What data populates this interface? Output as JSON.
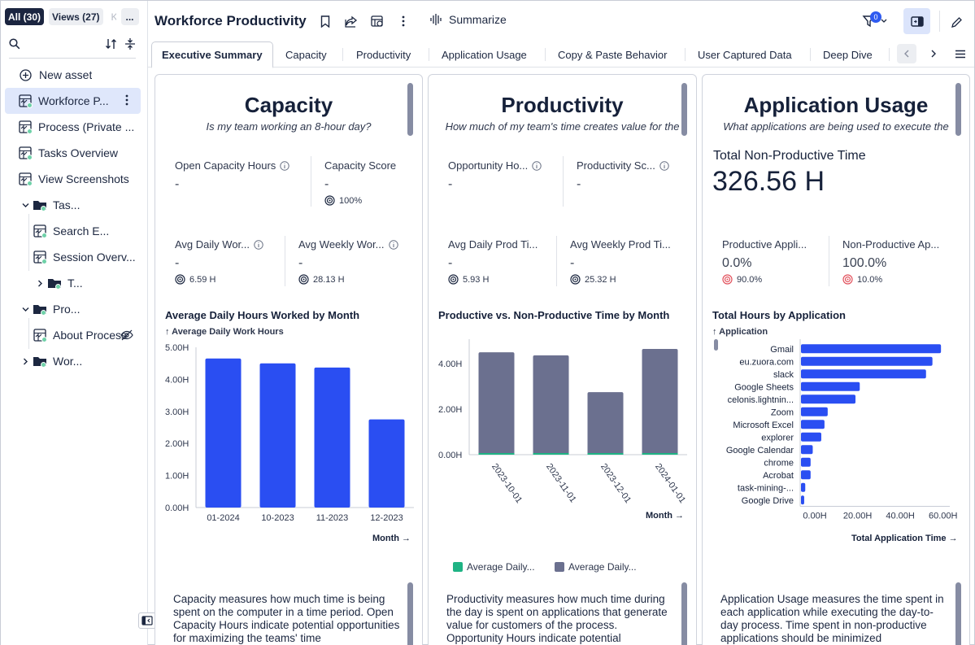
{
  "sidebar": {
    "tabs": [
      "All (30)",
      "Views (27)",
      "K",
      "..."
    ],
    "new_asset": "New asset",
    "items": [
      {
        "label": "Workforce P...",
        "icon": "view-icon"
      },
      {
        "label": "Process (Private ...",
        "icon": "view-icon"
      },
      {
        "label": "Tasks Overview",
        "icon": "view-icon"
      },
      {
        "label": "View Screenshots",
        "icon": "view-icon"
      },
      {
        "label": "Tas...",
        "icon": "folder-icon"
      },
      {
        "label": "Search E...",
        "icon": "view-icon"
      },
      {
        "label": "Session Overv...",
        "icon": "view-icon"
      },
      {
        "label": "T...",
        "icon": "folder-icon"
      },
      {
        "label": "Pro...",
        "icon": "folder-icon"
      },
      {
        "label": "About Process",
        "icon": "view-icon"
      },
      {
        "label": "Wor...",
        "icon": "folder-icon"
      }
    ]
  },
  "header": {
    "title": "Workforce Productivity",
    "summarize": "Summarize",
    "filter_count": "0"
  },
  "tabs": [
    "Executive Summary",
    "Capacity",
    "Productivity",
    "Application Usage",
    "Copy & Paste Behavior",
    "User Captured Data",
    "Deep Dive"
  ],
  "capacity": {
    "title": "Capacity",
    "subtitle": "Is my team working an 8-hour day?",
    "kpis": [
      {
        "label": "Open Capacity Hours",
        "value": "-"
      },
      {
        "label": "Capacity Score",
        "value": "-",
        "target": "100%"
      },
      {
        "label": "Avg Daily Wor...",
        "value": "-",
        "target": "6.59 H"
      },
      {
        "label": "Avg Weekly Wor...",
        "value": "-",
        "target": "28.13 H"
      }
    ],
    "chart_title": "Average Daily Hours Worked by Month",
    "chart_sub": "Average Daily Work Hours",
    "x_axis": "Month",
    "description": "Capacity measures how much time is being spent on the computer in a time period. Open Capacity Hours indicate potential opportunities for maximizing the teams' time"
  },
  "productivity": {
    "title": "Productivity",
    "subtitle": "How much of my team's time creates value for the process?",
    "kpis": [
      {
        "label": "Opportunity Ho...",
        "value": "-"
      },
      {
        "label": "Productivity Sc...",
        "value": "-"
      },
      {
        "label": "Avg Daily Prod Ti...",
        "value": "-",
        "target": "5.93 H"
      },
      {
        "label": "Avg Weekly Prod Ti...",
        "value": "-",
        "target": "25.32 H"
      }
    ],
    "chart_title": "Productive vs. Non-Productive Time by Month",
    "x_axis": "Month",
    "legend": [
      "Average Daily...",
      "Average Daily..."
    ],
    "description": "Productivity measures how much time during the day is spent on applications that generate value for customers of the process. Opportunity Hours indicate potential"
  },
  "appusage": {
    "title": "Application Usage",
    "subtitle": "What applications are being used to execute the process?",
    "total_label": "Total Non-Productive Time",
    "total_value": "326.56 H",
    "kpis": [
      {
        "label": "Productive Appli...",
        "value": "0.0%",
        "target": "90.0%"
      },
      {
        "label": "Non-Productive Ap...",
        "value": "100.0%",
        "target": "10.0%"
      }
    ],
    "chart_title": "Total Hours by Application",
    "chart_sub": "Application",
    "x_axis": "Total Application Time",
    "description": "Application Usage measures the time spent in each application while executing the day-to-day process. Time spent in non-productive applications should be minimized"
  },
  "colors": {
    "bar_blue": "#2a4ef2",
    "bar_gray": "#6b708f",
    "green": "#1fb384",
    "red": "#e2525d"
  },
  "chart_data": [
    {
      "type": "bar",
      "title": "Average Daily Hours Worked by Month",
      "categories": [
        "01-2024",
        "10-2023",
        "11-2023",
        "12-2023"
      ],
      "values": [
        4.65,
        4.5,
        4.37,
        2.75
      ],
      "ylim": [
        0,
        5
      ],
      "yticks": [
        "0.00H",
        "1.00H",
        "2.00H",
        "3.00H",
        "4.00H",
        "5.00H"
      ],
      "xlabel": "Month",
      "ylabel": "Average Daily Work Hours"
    },
    {
      "type": "bar",
      "title": "Productive vs. Non-Productive Time by Month",
      "categories": [
        "2023-10-01",
        "2023-11-01",
        "2023-12-01",
        "2024-01-01"
      ],
      "series": [
        {
          "name": "Average Daily...",
          "values": [
            0,
            0,
            0,
            0
          ],
          "color": "#1fb384"
        },
        {
          "name": "Average Daily...",
          "values": [
            4.5,
            4.37,
            2.75,
            4.65
          ],
          "color": "#6b708f"
        }
      ],
      "ylim": [
        0,
        4.9
      ],
      "yticks": [
        "0.00H",
        "2.00H",
        "4.00H"
      ],
      "xlabel": "Month"
    },
    {
      "type": "bar",
      "title": "Total Hours by Application",
      "categories": [
        "Gmail",
        "eu.zuora.com",
        "slack",
        "Google Sheets",
        "celonis.lightnin...",
        "Zoom",
        "Microsoft Excel",
        "explorer",
        "Google Calendar",
        "chrome",
        "Acrobat",
        "task-mining-...",
        "Google Drive"
      ],
      "values": [
        65.5,
        61.5,
        58.5,
        27.5,
        25.5,
        12.5,
        11,
        9.5,
        5.5,
        4.5,
        4.5,
        2,
        1.5
      ],
      "xlim": [
        0,
        70
      ],
      "xticks": [
        "0.00H",
        "20.00H",
        "40.00H",
        "60.00H"
      ],
      "xlabel": "Total Application Time",
      "ylabel": "Application"
    }
  ]
}
